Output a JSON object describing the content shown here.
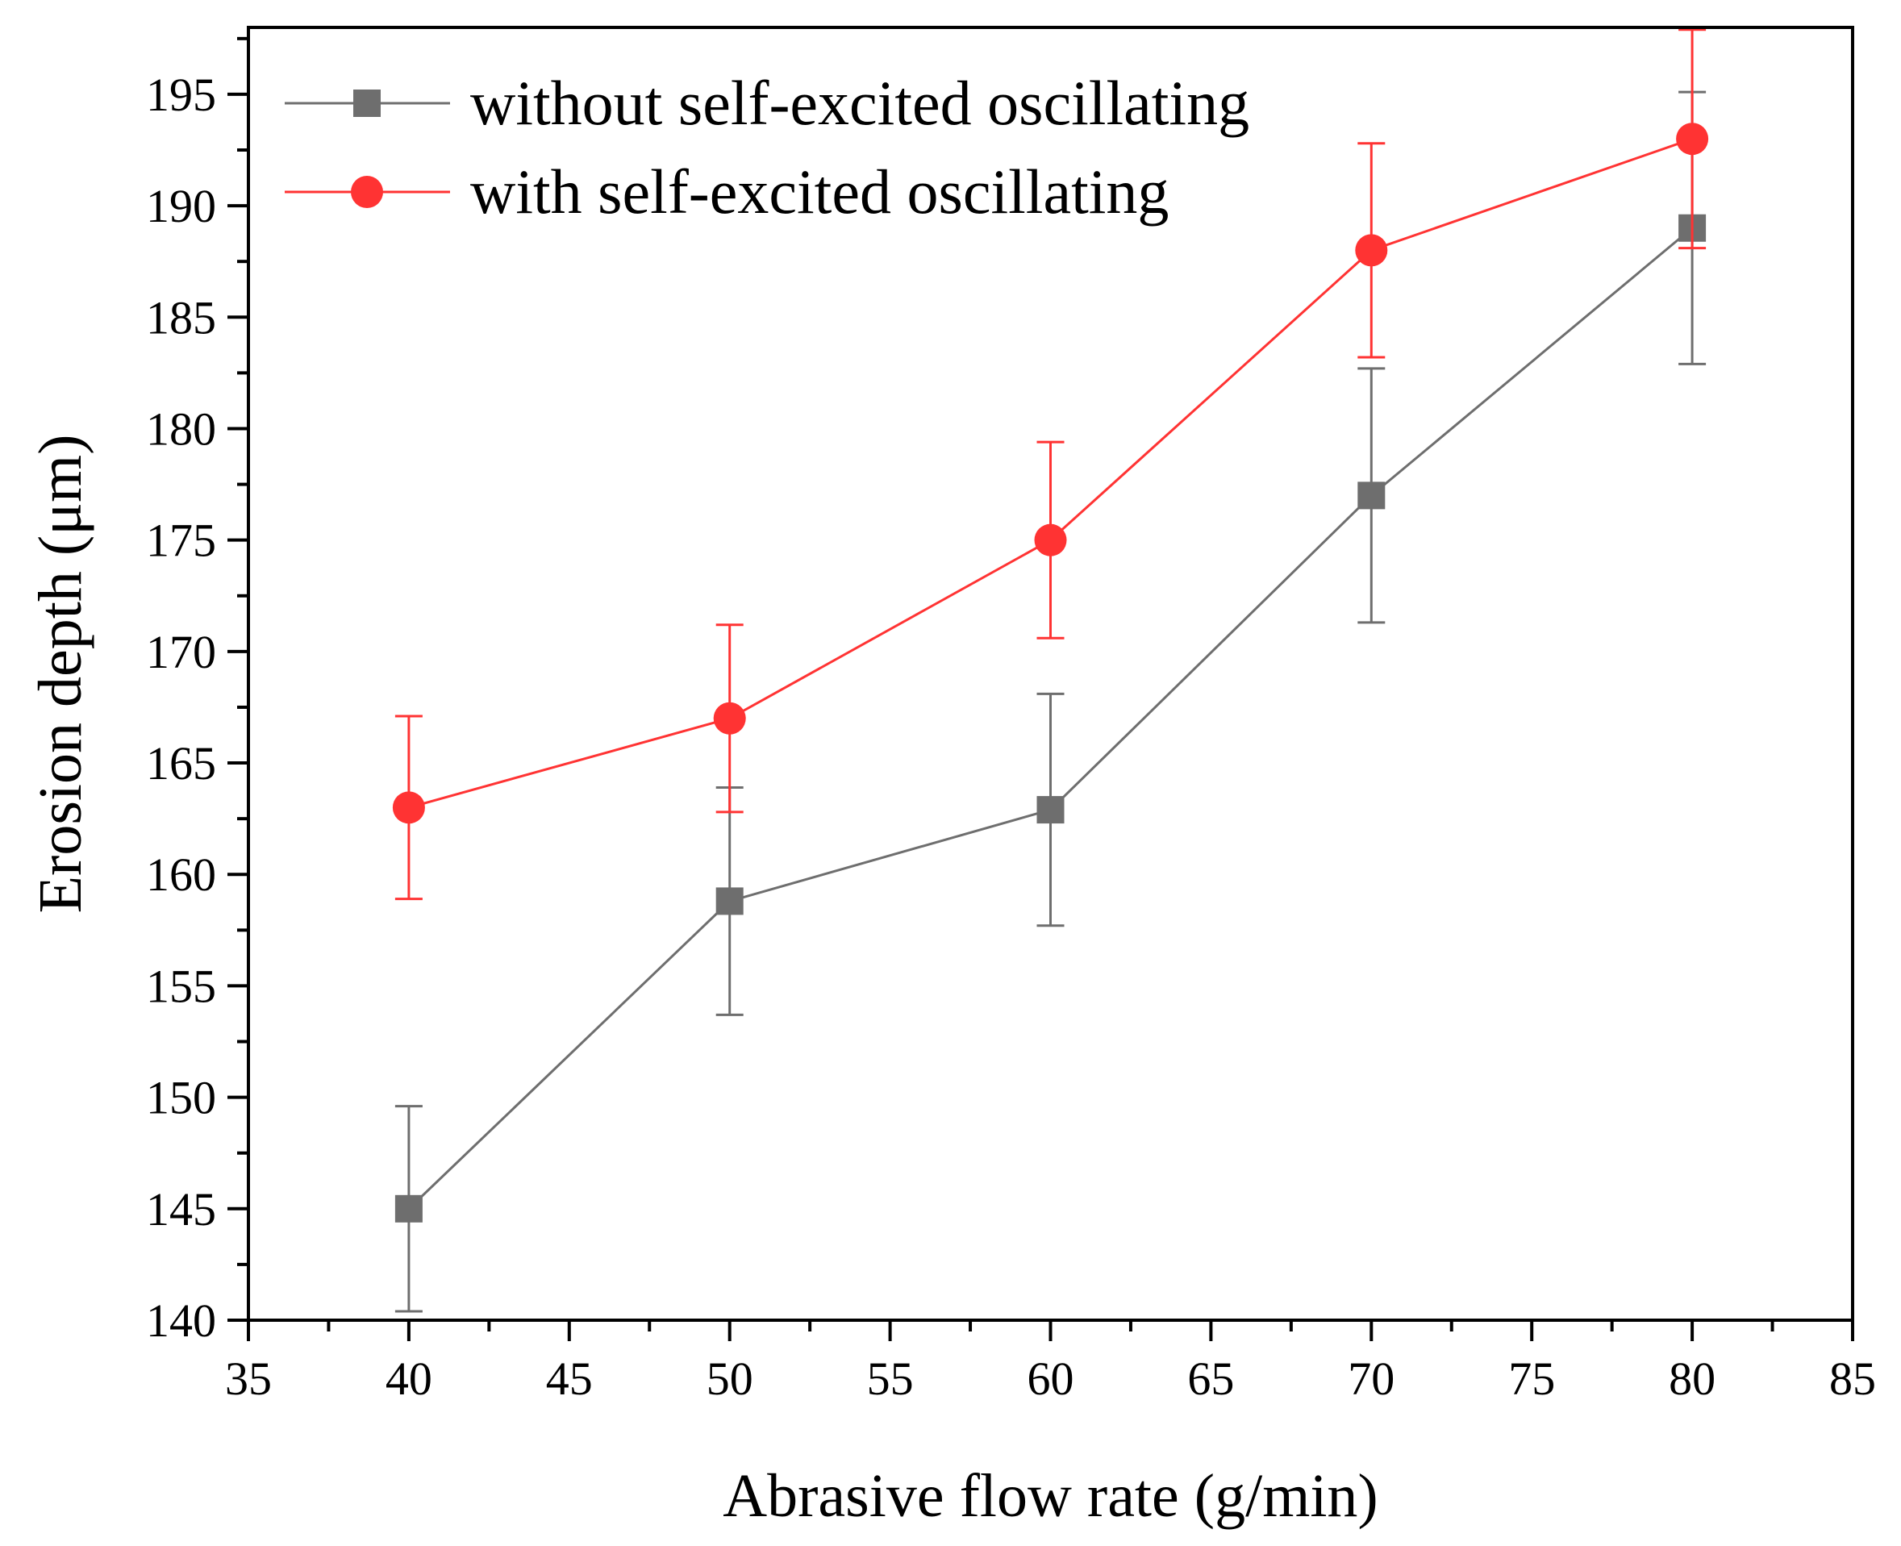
{
  "chart_data": {
    "type": "line",
    "title": "",
    "xlabel": "Abrasive flow rate (g/min)",
    "ylabel": "Erosion depth (μm)",
    "xlim": [
      35,
      85
    ],
    "ylim": [
      140,
      198
    ],
    "xticks": [
      35,
      40,
      45,
      50,
      55,
      60,
      65,
      70,
      75,
      80,
      85
    ],
    "yticks": [
      140,
      145,
      150,
      155,
      160,
      165,
      170,
      175,
      180,
      185,
      190,
      195
    ],
    "grid": false,
    "legend_position": "top-left",
    "x": [
      40,
      50,
      60,
      70,
      80
    ],
    "series": [
      {
        "name": "without self-excited oscillating",
        "marker": "square",
        "color": "#6e6e6e",
        "values": [
          145,
          158.8,
          162.9,
          177,
          189
        ],
        "error": [
          4.6,
          5.1,
          5.2,
          5.7,
          6.1
        ]
      },
      {
        "name": "with self-excited oscillating",
        "marker": "circle",
        "color": "#ff3333",
        "values": [
          163,
          167,
          175,
          188,
          193
        ],
        "error": [
          4.1,
          4.2,
          4.4,
          4.8,
          4.9
        ]
      }
    ]
  }
}
